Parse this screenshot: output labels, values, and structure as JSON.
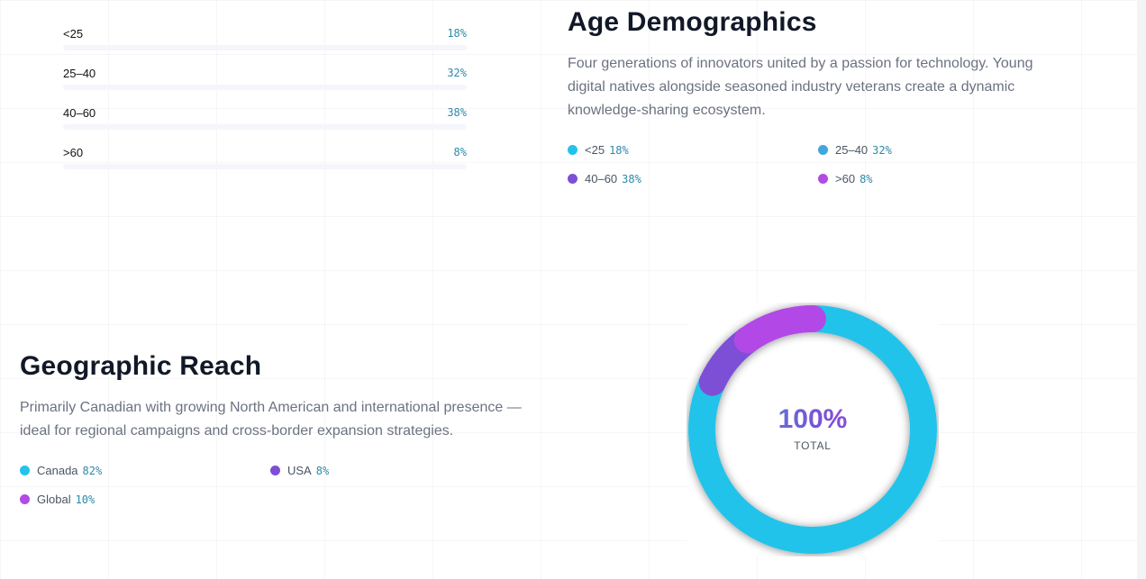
{
  "colors": {
    "cyan": "#22c3ea",
    "blue": "#3fa6e0",
    "purple": "#7c4fd6",
    "magenta": "#b24ae6",
    "value_text": "#2c8aa8"
  },
  "age_bars": [
    {
      "label": "<25",
      "value": "18%"
    },
    {
      "label": "25–40",
      "value": "32%"
    },
    {
      "label": "40–60",
      "value": "38%"
    },
    {
      "label": ">60",
      "value": "8%"
    }
  ],
  "age": {
    "title": "Age Demographics",
    "description": "Four generations of innovators united by a passion for technology. Young digital natives alongside seasoned industry veterans create a dynamic knowledge-sharing ecosystem.",
    "legend": [
      {
        "label": "<25",
        "value": "18%",
        "color": "#22c3ea"
      },
      {
        "label": "25–40",
        "value": "32%",
        "color": "#3fa6e0"
      },
      {
        "label": "40–60",
        "value": "38%",
        "color": "#7c4fd6"
      },
      {
        "label": ">60",
        "value": "8%",
        "color": "#b24ae6"
      }
    ]
  },
  "geo": {
    "title": "Geographic Reach",
    "description": "Primarily Canadian with growing North American and international presence —ideal for regional campaigns and cross-border expansion strategies.",
    "legend": [
      {
        "label": "Canada",
        "value": "82%",
        "color": "#22c3ea"
      },
      {
        "label": "USA",
        "value": "8%",
        "color": "#7c4fd6"
      },
      {
        "label": "Global",
        "value": "10%",
        "color": "#b24ae6"
      }
    ]
  },
  "chart_data": {
    "type": "pie",
    "variant": "donut",
    "title": "Geographic Reach",
    "categories": [
      "Canada",
      "USA",
      "Global"
    ],
    "values": [
      82,
      8,
      10
    ],
    "colors": [
      "#22c3ea",
      "#7c4fd6",
      "#b24ae6"
    ],
    "center_value": "100%",
    "center_label": "TOTAL"
  }
}
